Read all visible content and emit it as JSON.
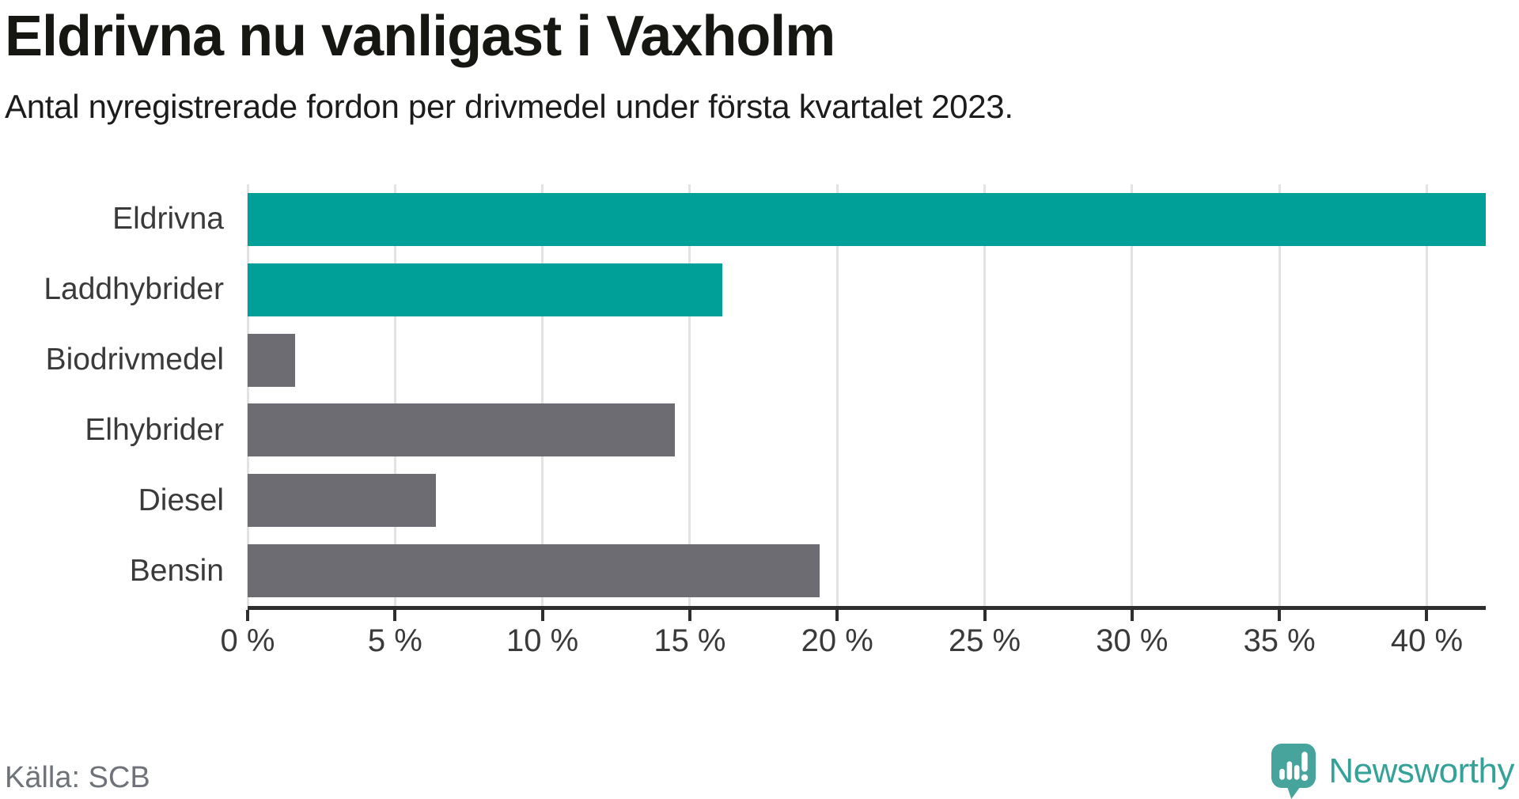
{
  "chart_data": {
    "type": "bar",
    "orientation": "horizontal",
    "title": "Eldrivna nu vanligast i Vaxholm",
    "subtitle": "Antal nyregistrerade fordon per drivmedel under första kvartalet 2023.",
    "categories": [
      "Eldrivna",
      "Laddhybrider",
      "Biodrivmedel",
      "Elhybrider",
      "Diesel",
      "Bensin"
    ],
    "values": [
      42.0,
      16.1,
      1.6,
      14.5,
      6.4,
      19.4
    ],
    "unit": "%",
    "bar_colors": [
      "#00a099",
      "#00a099",
      "#6c6c72",
      "#6c6c72",
      "#6c6c72",
      "#6c6c72"
    ],
    "series_note_colors": {
      "electric_highlight": "#00a099",
      "other": "#6c6c72"
    },
    "x_ticks": [
      0,
      5,
      10,
      15,
      20,
      25,
      30,
      35,
      40
    ],
    "x_tick_labels": [
      "0 %",
      "5 %",
      "10 %",
      "15 %",
      "20 %",
      "25 %",
      "30 %",
      "35 %",
      "40 %"
    ],
    "xlim": [
      0,
      42
    ],
    "grid": "vertical-only",
    "legend": "none",
    "source": "Källa: SCB"
  },
  "footer": {
    "source": "Källa: SCB",
    "brand": "Newsworthy"
  },
  "colors": {
    "accent_teal": "#00a099",
    "neutral_gray": "#6c6c72",
    "gridline": "#e3e3e3",
    "axis": "#2e2e2e",
    "title_text": "#161612",
    "subtitle_text": "#1c1c1c",
    "label_text": "#3a3a3a",
    "source_text": "#6f7379",
    "logo_teal": "#46a49d",
    "logo_text_teal": "#35a29a"
  }
}
